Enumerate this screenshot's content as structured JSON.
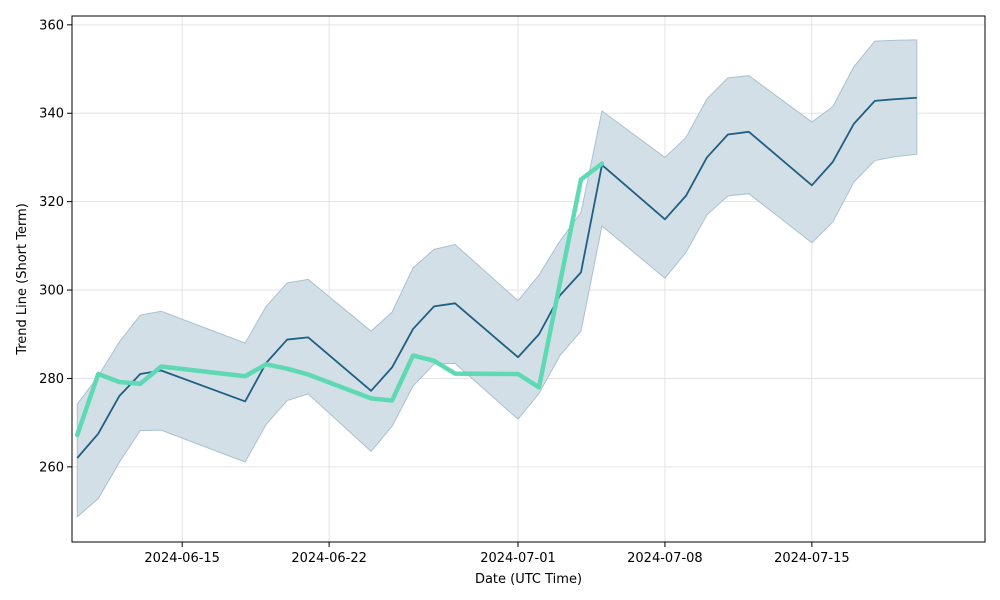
{
  "chart_data": {
    "type": "line",
    "title": "",
    "xlabel": "Date (UTC Time)",
    "ylabel": "Trend Line (Short Term)",
    "ylim": [
      243,
      362
    ],
    "xlim": [
      "2024-06-09T18:00",
      "2024-07-23T06:00"
    ],
    "grid": true,
    "x_ticks": [
      "2024-06-15",
      "2024-06-22",
      "2024-07-01",
      "2024-07-08",
      "2024-07-15"
    ],
    "y_ticks": [
      260,
      280,
      300,
      320,
      340,
      360
    ],
    "colors": {
      "band_fill": "#d3dfe6",
      "band_edge": "#a9c1d0",
      "trend_line": "#1f5f82",
      "actual_line": "#5fd9b4",
      "grid": "#e3e3e3"
    },
    "series": [
      {
        "role": "trend",
        "x": [
          "2024-06-10",
          "2024-06-11",
          "2024-06-12",
          "2024-06-13",
          "2024-06-14",
          "2024-06-18",
          "2024-06-19",
          "2024-06-20",
          "2024-06-21",
          "2024-06-24",
          "2024-06-25",
          "2024-06-26",
          "2024-06-27",
          "2024-06-28",
          "2024-07-01",
          "2024-07-02",
          "2024-07-03",
          "2024-07-04",
          "2024-07-05",
          "2024-07-08",
          "2024-07-09",
          "2024-07-10",
          "2024-07-11",
          "2024-07-12",
          "2024-07-15",
          "2024-07-16",
          "2024-07-17",
          "2024-07-18",
          "2024-07-19",
          "2024-07-20"
        ],
        "values": [
          262,
          267.5,
          276,
          281,
          281.8,
          274.8,
          283.5,
          288.8,
          289.3,
          277.2,
          282.5,
          291.2,
          296.3,
          297,
          284.8,
          290,
          298.8,
          304,
          328.3,
          316,
          321.3,
          330,
          335.2,
          335.8,
          323.7,
          329,
          337.6,
          342.8,
          343.2,
          343.5
        ]
      },
      {
        "role": "upper_bound",
        "x": [
          "2024-06-10",
          "2024-06-11",
          "2024-06-12",
          "2024-06-13",
          "2024-06-14",
          "2024-06-18",
          "2024-06-19",
          "2024-06-20",
          "2024-06-21",
          "2024-06-24",
          "2024-06-25",
          "2024-06-26",
          "2024-06-27",
          "2024-06-28",
          "2024-07-01",
          "2024-07-02",
          "2024-07-03",
          "2024-07-04",
          "2024-07-05",
          "2024-07-08",
          "2024-07-09",
          "2024-07-10",
          "2024-07-11",
          "2024-07-12",
          "2024-07-15",
          "2024-07-16",
          "2024-07-17",
          "2024-07-18",
          "2024-07-19",
          "2024-07-20"
        ],
        "values": [
          274.2,
          280.5,
          288.2,
          294.3,
          295.2,
          288,
          296.3,
          301.6,
          302.4,
          290.7,
          295,
          305,
          309.2,
          310.3,
          297.6,
          303.4,
          311.1,
          317.5,
          340.5,
          330,
          334.5,
          343.2,
          348,
          348.5,
          338,
          341.5,
          350.5,
          356.3,
          356.5,
          356.6
        ]
      },
      {
        "role": "lower_bound",
        "x": [
          "2024-06-10",
          "2024-06-11",
          "2024-06-12",
          "2024-06-13",
          "2024-06-14",
          "2024-06-18",
          "2024-06-19",
          "2024-06-20",
          "2024-06-21",
          "2024-06-24",
          "2024-06-25",
          "2024-06-26",
          "2024-06-27",
          "2024-06-28",
          "2024-07-01",
          "2024-07-02",
          "2024-07-03",
          "2024-07-04",
          "2024-07-05",
          "2024-07-08",
          "2024-07-09",
          "2024-07-10",
          "2024-07-11",
          "2024-07-12",
          "2024-07-15",
          "2024-07-16",
          "2024-07-17",
          "2024-07-18",
          "2024-07-19",
          "2024-07-20"
        ],
        "values": [
          248.7,
          252.8,
          261,
          268.2,
          268.3,
          261.1,
          269.6,
          275,
          276.5,
          263.5,
          269.2,
          278.3,
          283.3,
          283.4,
          270.8,
          276.6,
          285.2,
          290.7,
          314.5,
          302.7,
          308.5,
          317,
          321.3,
          321.8,
          310.7,
          315.4,
          324.4,
          329.3,
          330.2,
          330.7
        ]
      },
      {
        "role": "actual",
        "x": [
          "2024-06-10",
          "2024-06-11",
          "2024-06-12",
          "2024-06-13",
          "2024-06-14",
          "2024-06-18",
          "2024-06-19",
          "2024-06-20",
          "2024-06-21",
          "2024-06-24",
          "2024-06-25",
          "2024-06-26",
          "2024-06-27",
          "2024-06-28",
          "2024-07-01",
          "2024-07-02",
          "2024-07-03",
          "2024-07-04",
          "2024-07-05"
        ],
        "values": [
          267.2,
          281,
          279.2,
          278.8,
          282.7,
          280.5,
          283.2,
          282.2,
          280.9,
          275.5,
          275,
          285.2,
          284,
          281.1,
          281,
          278,
          301.6,
          325,
          328.6
        ]
      }
    ]
  }
}
